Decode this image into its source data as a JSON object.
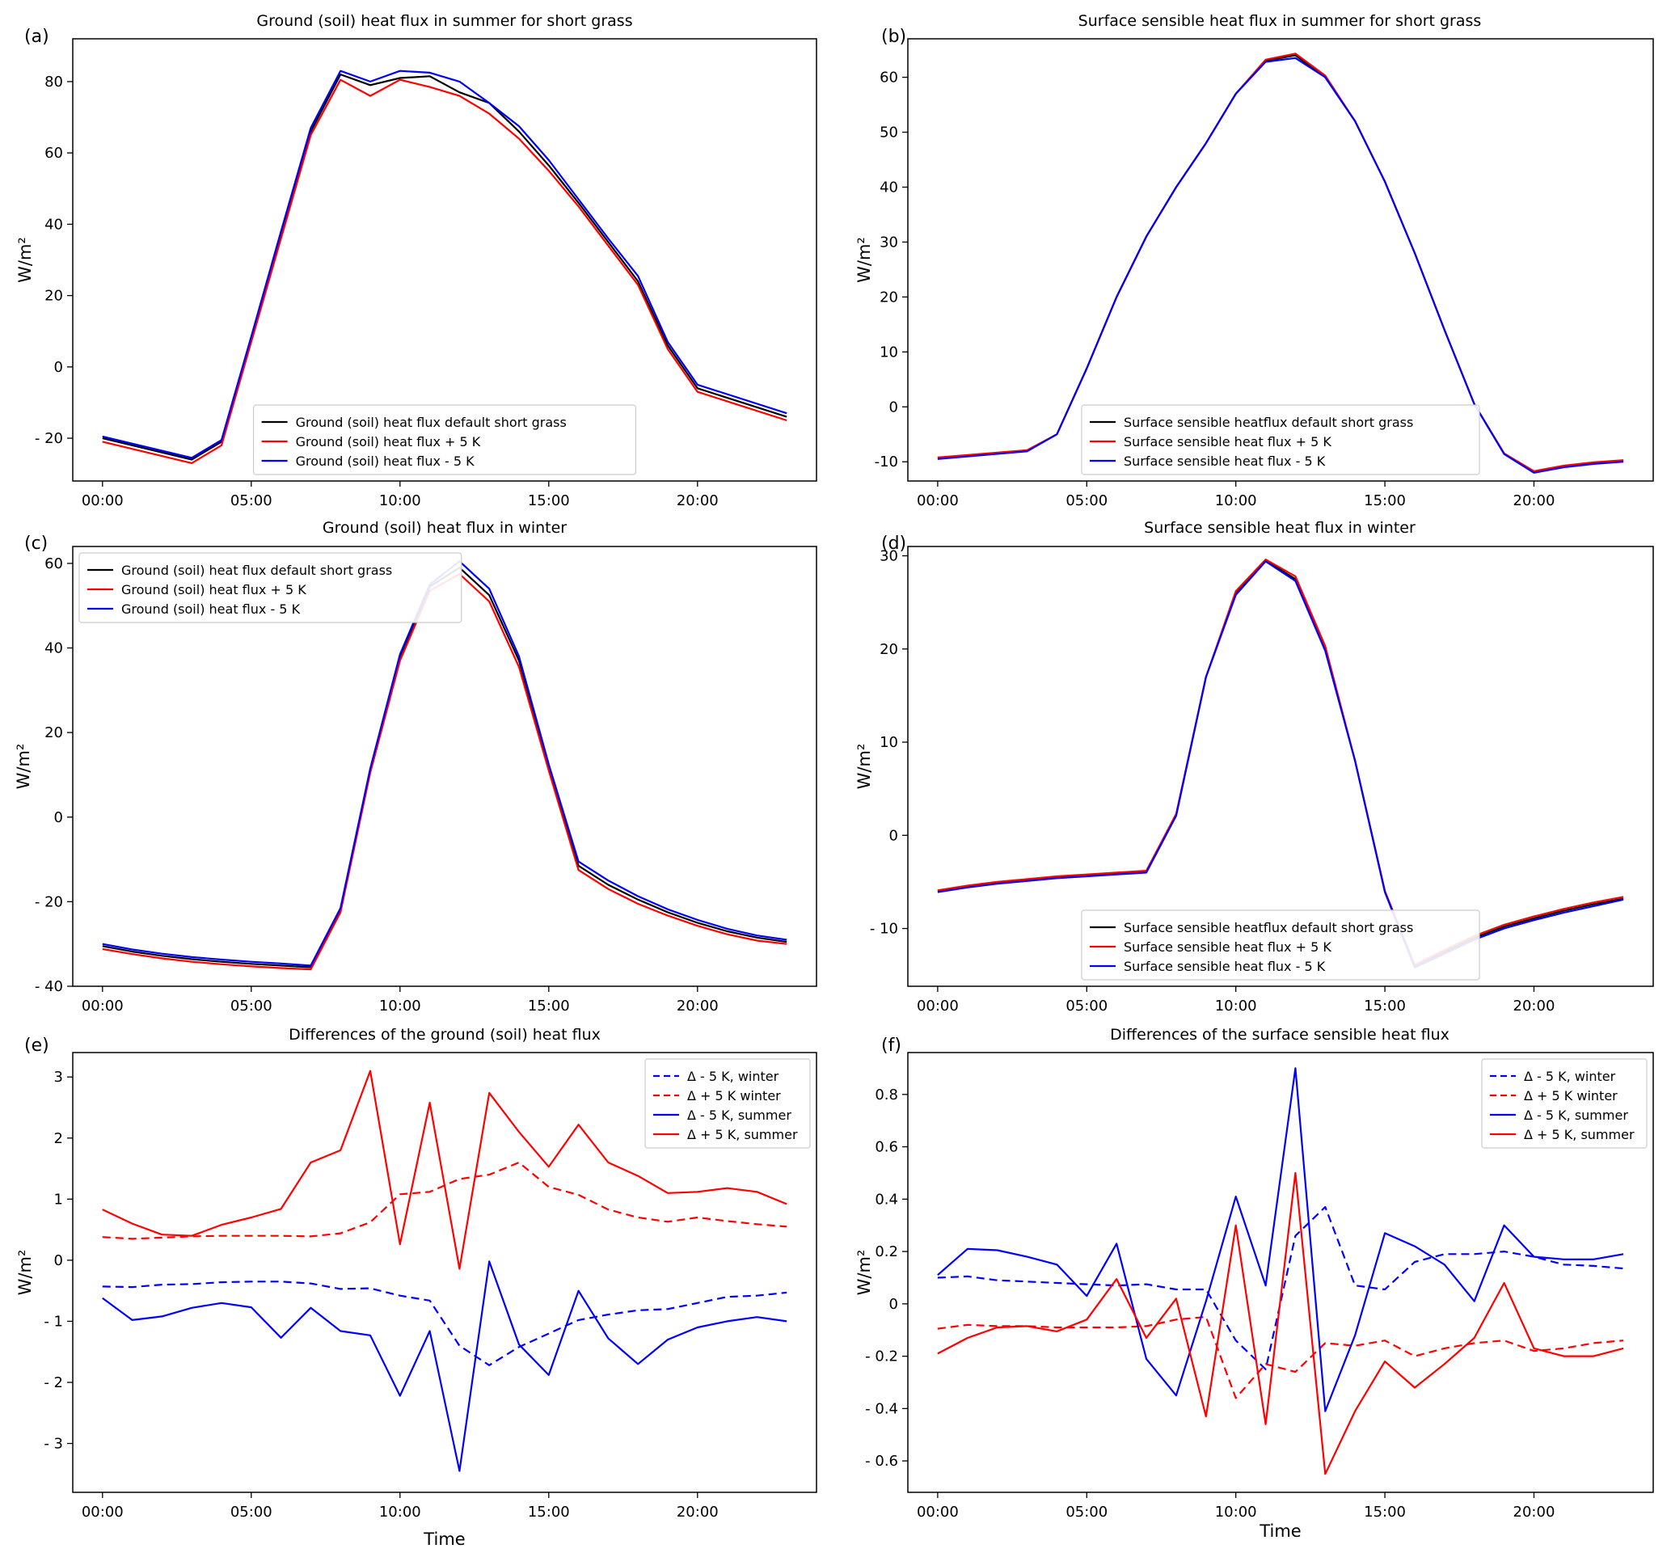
{
  "figure": {
    "colors": {
      "black": "#000000",
      "red": "#ff0000",
      "blue": "#0000ff"
    },
    "xticks": [
      0,
      5,
      10,
      15,
      20
    ],
    "xticklabels": [
      "00:00",
      "05:00",
      "10:00",
      "15:00",
      "20:00"
    ]
  },
  "chart_data": [
    {
      "panel": "(a)",
      "type": "line",
      "title": "Ground (soil) heat flux in summer for short grass",
      "xlabel": "",
      "ylabel": "W/m²",
      "xlim": [
        -1,
        24
      ],
      "ylim": [
        -32,
        92
      ],
      "yticks": [
        -20,
        0,
        20,
        40,
        60,
        80
      ],
      "yticklabels": [
        "- 20",
        "0",
        "20",
        "40",
        "60",
        "80"
      ],
      "legend_loc": "lower-center",
      "x": [
        0,
        3,
        4,
        5,
        6,
        7,
        8,
        9,
        10,
        11,
        12,
        13,
        14,
        15,
        16,
        17,
        18,
        19,
        20,
        23
      ],
      "series": [
        {
          "name": "Ground (soil) heat flux default short grass",
          "color": "black",
          "style": "solid",
          "values": [
            -20,
            -26,
            -21,
            8,
            37,
            66,
            82,
            79,
            81,
            81.5,
            77,
            74,
            66,
            56.5,
            46,
            35,
            24,
            6,
            -6,
            -14
          ]
        },
        {
          "name": "Ground (soil) heat flux + 5 K",
          "color": "red",
          "style": "solid",
          "values": [
            -21,
            -27,
            -22,
            7,
            36,
            65,
            80.5,
            76,
            80.5,
            78.5,
            76,
            71,
            64,
            55,
            45,
            34,
            23,
            5,
            -7,
            -15
          ]
        },
        {
          "name": "Ground (soil) heat flux - 5 K",
          "color": "blue",
          "style": "solid",
          "values": [
            -19.5,
            -25.5,
            -20.5,
            8.5,
            38,
            67,
            83,
            80,
            83,
            82.5,
            80,
            74,
            67.5,
            58,
            47,
            36,
            25.5,
            7,
            -5,
            -13
          ]
        }
      ]
    },
    {
      "panel": "(b)",
      "type": "line",
      "title": "Surface sensible heat flux in summer for short grass",
      "xlabel": "",
      "ylabel": "W/m²",
      "xlim": [
        -1,
        24
      ],
      "ylim": [
        -13.5,
        67
      ],
      "yticks": [
        -10,
        0,
        10,
        20,
        30,
        40,
        50,
        60
      ],
      "yticklabels": [
        "-10",
        "0",
        "10",
        "20",
        "30",
        "40",
        "50",
        "60"
      ],
      "legend_loc": "lower-center",
      "x": [
        0,
        3,
        4,
        5,
        6,
        7,
        8,
        9,
        10,
        11,
        12,
        13,
        14,
        15,
        16,
        17,
        18,
        19,
        20,
        21,
        22,
        23
      ],
      "series": [
        {
          "name": "Surface sensible heatflux default short grass",
          "color": "black",
          "style": "solid",
          "values": [
            -9.3,
            -8,
            -5,
            7,
            20,
            31,
            40,
            48,
            57,
            63,
            64,
            60,
            52,
            41,
            28,
            14,
            0.5,
            -8.5,
            -11.8,
            -10.8,
            -10.2,
            -9.8
          ]
        },
        {
          "name": "Surface sensible heat flux + 5 K",
          "color": "red",
          "style": "solid",
          "values": [
            -9.2,
            -7.9,
            -5,
            7,
            20,
            31,
            40,
            48,
            57,
            63.2,
            64.3,
            60.3,
            52,
            41,
            28,
            14,
            0.5,
            -8.5,
            -11.7,
            -10.7,
            -10.1,
            -9.7
          ]
        },
        {
          "name": "Surface sensible heat flux - 5 K",
          "color": "blue",
          "style": "solid",
          "values": [
            -9.5,
            -8.1,
            -5,
            7,
            20,
            31,
            40,
            48,
            57,
            62.8,
            63.5,
            60,
            52,
            41,
            28,
            14,
            0.5,
            -8.6,
            -12,
            -11,
            -10.4,
            -10
          ]
        }
      ]
    },
    {
      "panel": "(c)",
      "type": "line",
      "title": "Ground (soil) heat flux in winter",
      "xlabel": "",
      "ylabel": "W/m²",
      "xlim": [
        -1,
        24
      ],
      "ylim": [
        -40,
        64
      ],
      "yticks": [
        -40,
        -20,
        0,
        20,
        40,
        60
      ],
      "yticklabels": [
        "- 40",
        "- 20",
        "0",
        "20",
        "40",
        "60"
      ],
      "legend_loc": "upper-left",
      "x": [
        0,
        1,
        2,
        3,
        4,
        5,
        6,
        7,
        8,
        9,
        10,
        11,
        12,
        13,
        14,
        15,
        16,
        17,
        18,
        19,
        20,
        21,
        22,
        23
      ],
      "series": [
        {
          "name": "Ground (soil) heat flux default short grass",
          "color": "black",
          "style": "solid",
          "values": [
            -30.5,
            -31.8,
            -32.8,
            -33.6,
            -34.2,
            -34.7,
            -35.1,
            -35.5,
            -22,
            11,
            38,
            54.5,
            59,
            52.5,
            37,
            12,
            -11.5,
            -16,
            -19.5,
            -22.5,
            -25,
            -27,
            -28.5,
            -29.5
          ]
        },
        {
          "name": "Ground (soil) heat flux + 5 K",
          "color": "red",
          "style": "solid",
          "values": [
            -31.2,
            -32.4,
            -33.4,
            -34.2,
            -34.8,
            -35.3,
            -35.7,
            -36,
            -22.5,
            10.5,
            37,
            53.5,
            57.5,
            51,
            35.5,
            11,
            -12.5,
            -17,
            -20.5,
            -23.3,
            -25.7,
            -27.7,
            -29.2,
            -30
          ]
        },
        {
          "name": "Ground (soil) heat flux - 5 K",
          "color": "blue",
          "style": "solid",
          "values": [
            -30,
            -31.3,
            -32.3,
            -33.1,
            -33.7,
            -34.2,
            -34.6,
            -35.1,
            -21.5,
            11.5,
            38.5,
            55,
            60.5,
            54,
            38,
            12.5,
            -10.5,
            -15,
            -18.7,
            -21.8,
            -24.3,
            -26.4,
            -28,
            -29
          ]
        }
      ]
    },
    {
      "panel": "(d)",
      "type": "line",
      "title": "Surface sensible heat flux in winter",
      "xlabel": "",
      "ylabel": "W/m²",
      "xlim": [
        -1,
        24
      ],
      "ylim": [
        -16.2,
        31
      ],
      "yticks": [
        -10,
        0,
        10,
        20,
        30
      ],
      "yticklabels": [
        "- 10",
        "0",
        "10",
        "20",
        "30"
      ],
      "legend_loc": "lower-center",
      "x": [
        0,
        1,
        2,
        3,
        4,
        5,
        6,
        7,
        8,
        9,
        10,
        11,
        12,
        13,
        14,
        15,
        16,
        17,
        18,
        19,
        20,
        21,
        22,
        23
      ],
      "series": [
        {
          "name": "Surface sensible heatflux default short grass",
          "color": "black",
          "style": "solid",
          "values": [
            -6,
            -5.5,
            -5.1,
            -4.8,
            -4.5,
            -4.3,
            -4.1,
            -3.9,
            2.2,
            17,
            26,
            29.5,
            27.5,
            20,
            8,
            -6,
            -14,
            -12.5,
            -11,
            -9.8,
            -8.9,
            -8.1,
            -7.4,
            -6.8
          ]
        },
        {
          "name": "Surface sensible heat flux + 5 K",
          "color": "red",
          "style": "solid",
          "values": [
            -5.9,
            -5.4,
            -5,
            -4.7,
            -4.4,
            -4.2,
            -4,
            -3.8,
            2.3,
            17,
            26.2,
            29.6,
            27.8,
            20.3,
            8,
            -6,
            -13.9,
            -12.3,
            -10.8,
            -9.6,
            -8.7,
            -7.9,
            -7.2,
            -6.6
          ]
        },
        {
          "name": "Surface sensible heat flux - 5 K",
          "color": "blue",
          "style": "solid",
          "values": [
            -6.1,
            -5.6,
            -5.2,
            -4.9,
            -4.6,
            -4.4,
            -4.2,
            -4,
            2.1,
            17,
            25.8,
            29.4,
            27.3,
            19.8,
            8,
            -6.1,
            -14.2,
            -12.7,
            -11.2,
            -10,
            -9.1,
            -8.3,
            -7.6,
            -6.9
          ]
        }
      ]
    },
    {
      "panel": "(e)",
      "type": "line",
      "title": "Differences of the ground (soil) heat flux",
      "xlabel": "Time",
      "ylabel": "W/m²",
      "xlim": [
        -1,
        24
      ],
      "ylim": [
        -3.8,
        3.4
      ],
      "yticks": [
        -3,
        -2,
        -1,
        0,
        1,
        2,
        3
      ],
      "yticklabels": [
        "- 3",
        "- 2",
        "- 1",
        "0",
        "1",
        "2",
        "3"
      ],
      "legend_loc": "upper-right",
      "x": [
        0,
        1,
        2,
        3,
        4,
        5,
        6,
        7,
        8,
        9,
        10,
        11,
        12,
        13,
        14,
        15,
        16,
        17,
        18,
        19,
        20,
        21,
        22,
        23
      ],
      "series": [
        {
          "name": "Δ - 5 K, winter",
          "color": "blue",
          "style": "dashed",
          "values": [
            -0.43,
            -0.44,
            -0.4,
            -0.39,
            -0.36,
            -0.35,
            -0.35,
            -0.38,
            -0.47,
            -0.46,
            -0.58,
            -0.66,
            -1.4,
            -1.72,
            -1.42,
            -1.2,
            -0.98,
            -0.89,
            -0.82,
            -0.8,
            -0.7,
            -0.6,
            -0.58,
            -0.53
          ]
        },
        {
          "name": "Δ + 5 K winter",
          "color": "red",
          "style": "dashed",
          "values": [
            0.38,
            0.35,
            0.37,
            0.39,
            0.4,
            0.4,
            0.4,
            0.39,
            0.44,
            0.62,
            1.08,
            1.12,
            1.33,
            1.4,
            1.6,
            1.2,
            1.07,
            0.83,
            0.7,
            0.63,
            0.7,
            0.64,
            0.59,
            0.55
          ]
        },
        {
          "name": "Δ - 5 K, summer",
          "color": "blue",
          "style": "solid",
          "values": [
            -0.62,
            -0.98,
            -0.92,
            -0.78,
            -0.7,
            -0.77,
            -1.27,
            -0.78,
            -1.16,
            -1.23,
            -2.22,
            -1.16,
            -3.45,
            -0.02,
            -1.38,
            -1.88,
            -0.5,
            -1.28,
            -1.7,
            -1.3,
            -1.1,
            -1.0,
            -0.93,
            -1.0
          ]
        },
        {
          "name": "Δ + 5 K, summer",
          "color": "red",
          "style": "solid",
          "values": [
            0.83,
            0.6,
            0.42,
            0.4,
            0.58,
            0.7,
            0.84,
            1.6,
            1.8,
            3.1,
            0.26,
            2.58,
            -0.14,
            2.74,
            2.1,
            1.53,
            2.22,
            1.6,
            1.38,
            1.1,
            1.12,
            1.18,
            1.12,
            0.92
          ]
        }
      ]
    },
    {
      "panel": "(f)",
      "type": "line",
      "title": "Differences of the surface sensible heat flux",
      "xlabel": "Time",
      "ylabel": "W/m²",
      "xlim": [
        -1,
        24
      ],
      "ylim": [
        -0.72,
        0.96
      ],
      "yticks": [
        -0.6,
        -0.4,
        -0.2,
        0,
        0.2,
        0.4,
        0.6,
        0.8
      ],
      "yticklabels": [
        "- 0.6",
        "- 0.4",
        "- 0.2",
        "0",
        "0.2",
        "0.4",
        "0.6",
        "0.8"
      ],
      "legend_loc": "upper-right",
      "x": [
        0,
        1,
        2,
        3,
        4,
        5,
        6,
        7,
        8,
        9,
        10,
        11,
        12,
        13,
        14,
        15,
        16,
        17,
        18,
        19,
        20,
        21,
        22,
        23
      ],
      "series": [
        {
          "name": "Δ - 5 K, winter",
          "color": "blue",
          "style": "dashed",
          "values": [
            0.1,
            0.105,
            0.09,
            0.085,
            0.08,
            0.075,
            0.07,
            0.075,
            0.055,
            0.055,
            -0.14,
            -0.25,
            0.26,
            0.37,
            0.07,
            0.055,
            0.16,
            0.19,
            0.19,
            0.2,
            0.18,
            0.15,
            0.145,
            0.135
          ]
        },
        {
          "name": "Δ + 5 K winter",
          "color": "red",
          "style": "dashed",
          "values": [
            -0.095,
            -0.08,
            -0.085,
            -0.085,
            -0.09,
            -0.09,
            -0.09,
            -0.085,
            -0.06,
            -0.05,
            -0.36,
            -0.23,
            -0.26,
            -0.15,
            -0.16,
            -0.14,
            -0.2,
            -0.17,
            -0.15,
            -0.14,
            -0.18,
            -0.17,
            -0.15,
            -0.14
          ]
        },
        {
          "name": "Δ - 5 K, summer",
          "color": "blue",
          "style": "solid",
          "values": [
            0.11,
            0.21,
            0.205,
            0.18,
            0.15,
            0.03,
            0.23,
            -0.21,
            -0.35,
            0.01,
            0.41,
            0.07,
            0.9,
            -0.41,
            -0.12,
            0.27,
            0.22,
            0.15,
            0.01,
            0.3,
            0.18,
            0.17,
            0.17,
            0.19
          ]
        },
        {
          "name": "Δ + 5 K, summer",
          "color": "red",
          "style": "solid",
          "values": [
            -0.19,
            -0.13,
            -0.09,
            -0.085,
            -0.105,
            -0.06,
            0.095,
            -0.13,
            0.02,
            -0.43,
            0.3,
            -0.46,
            0.5,
            -0.65,
            -0.41,
            -0.22,
            -0.32,
            -0.23,
            -0.13,
            0.08,
            -0.17,
            -0.2,
            -0.2,
            -0.17
          ]
        }
      ]
    }
  ]
}
